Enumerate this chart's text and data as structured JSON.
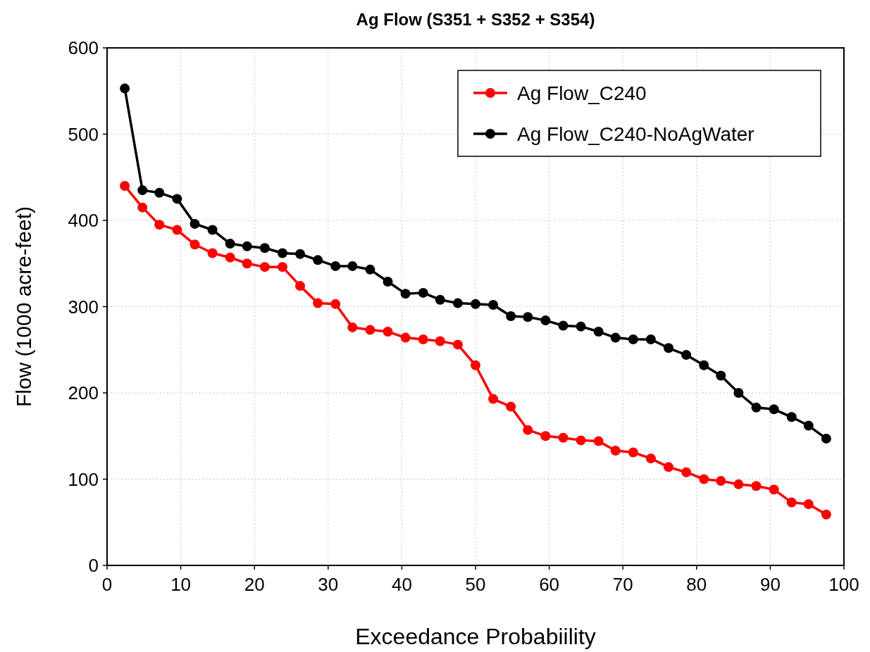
{
  "chart_data": {
    "type": "line",
    "title": "Ag Flow (S351 + S352 + S354)",
    "xlabel": "Exceedance Probabiility",
    "ylabel": "Flow (1000 acre-feet)",
    "x": [
      2.4,
      4.8,
      7.1,
      9.5,
      11.9,
      14.3,
      16.7,
      19.0,
      21.4,
      23.8,
      26.2,
      28.6,
      31.0,
      33.3,
      35.7,
      38.1,
      40.5,
      42.9,
      45.2,
      47.6,
      50.0,
      52.4,
      54.8,
      57.1,
      59.5,
      61.9,
      64.3,
      66.7,
      69.0,
      71.4,
      73.8,
      76.2,
      78.6,
      81.0,
      83.3,
      85.7,
      88.1,
      90.5,
      92.9,
      95.2,
      97.6
    ],
    "series": [
      {
        "name": "Ag Flow_C240",
        "color": "#ff0000",
        "values": [
          440,
          415,
          395,
          389,
          372,
          362,
          357,
          350,
          346,
          346,
          324,
          304,
          303,
          276,
          273,
          271,
          264,
          262,
          260,
          256,
          232,
          193,
          184,
          157,
          150,
          148,
          145,
          144,
          133,
          131,
          124,
          114,
          108,
          100,
          98,
          94,
          92,
          88,
          73,
          71,
          59
        ]
      },
      {
        "name": "Ag Flow_C240-NoAgWater",
        "color": "#000000",
        "values": [
          553,
          435,
          432,
          425,
          396,
          389,
          373,
          370,
          368,
          362,
          361,
          354,
          347,
          347,
          343,
          329,
          315,
          316,
          308,
          304,
          303,
          302,
          289,
          288,
          284,
          278,
          277,
          271,
          264,
          262,
          262,
          252,
          244,
          232,
          220,
          200,
          183,
          181,
          172,
          162,
          147
        ]
      }
    ],
    "xlim": [
      0,
      100
    ],
    "xticks": [
      0,
      10,
      20,
      30,
      40,
      50,
      60,
      70,
      80,
      90,
      100
    ],
    "ylim": [
      0,
      600
    ],
    "yticks": [
      0,
      100,
      200,
      300,
      400,
      500,
      600
    ],
    "grid": true,
    "legend": "top right",
    "marker": "circle",
    "line_style": "solid"
  }
}
